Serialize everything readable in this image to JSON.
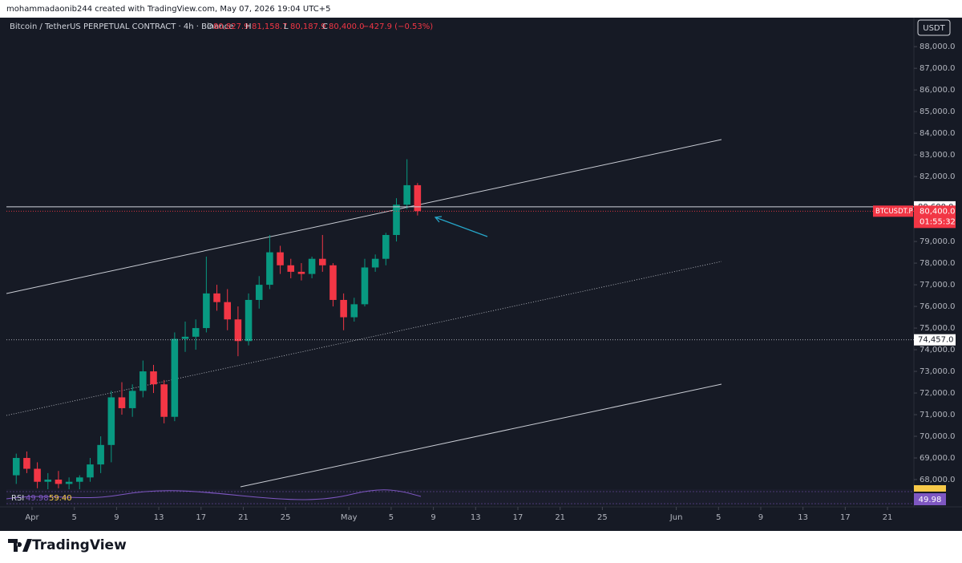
{
  "header": {
    "attribution": "mohammadaonib244 created with TradingView.com, May 07, 2026 19:04 UTC+5"
  },
  "legend": {
    "symbol": "Bitcoin / TetherUS PERPETUAL CONTRACT · 4h · Binance",
    "open_label": "O",
    "open": "80,827.9",
    "high_label": "H",
    "high": "81,158.7",
    "low_label": "L",
    "low": "80,187.9",
    "close_label": "C",
    "close": "80,400.0",
    "change": "−427.9 (−0.53%)"
  },
  "currency_button": "USDT",
  "chart_data": {
    "type": "candlestick",
    "x": [
      -2,
      -1,
      0,
      1,
      2,
      3,
      4,
      5,
      6,
      7,
      8,
      9,
      10,
      11,
      12,
      13,
      14,
      15,
      16,
      17,
      18,
      19,
      20,
      21,
      22,
      23,
      24,
      25,
      26,
      27,
      28,
      29,
      30,
      31,
      32,
      33,
      34,
      35,
      36
    ],
    "open": [
      68200,
      69000,
      68500,
      67900,
      68000,
      67800,
      67900,
      68100,
      68700,
      69600,
      71800,
      71300,
      72100,
      73000,
      72400,
      70900,
      74500,
      74600,
      75000,
      76600,
      76200,
      75400,
      74400,
      76300,
      77000,
      78500,
      77900,
      77600,
      77500,
      78200,
      77900,
      76300,
      75500,
      76100,
      77800,
      78200,
      79300,
      80700,
      81600
    ],
    "high": [
      69200,
      69300,
      68800,
      68300,
      68400,
      68100,
      68200,
      69000,
      70000,
      72100,
      72500,
      72400,
      73500,
      73300,
      72600,
      74800,
      75300,
      75400,
      78300,
      77000,
      76800,
      76000,
      76600,
      77400,
      79300,
      78800,
      78200,
      78000,
      78300,
      79300,
      78000,
      76600,
      76400,
      78200,
      78400,
      79400,
      81000,
      82800,
      81700
    ],
    "low": [
      67800,
      68300,
      67600,
      67400,
      67600,
      67300,
      67500,
      67900,
      68300,
      68800,
      71000,
      70900,
      71800,
      72000,
      70600,
      70700,
      73900,
      74000,
      74800,
      75800,
      74900,
      73700,
      74200,
      75900,
      76800,
      77500,
      77300,
      77200,
      77300,
      77600,
      76000,
      74900,
      75300,
      76000,
      77600,
      77900,
      79000,
      80500,
      80200
    ],
    "close": [
      69000,
      68500,
      67900,
      68000,
      67800,
      67900,
      68100,
      68700,
      69600,
      71800,
      71300,
      72100,
      73000,
      72400,
      70900,
      74500,
      74600,
      75000,
      76600,
      76200,
      75400,
      74400,
      76300,
      77000,
      78500,
      77900,
      77600,
      77500,
      78200,
      77900,
      76300,
      75500,
      76100,
      77800,
      78200,
      79300,
      80700,
      81600,
      80400
    ],
    "up_color": "#089981",
    "down_color": "#f23645",
    "xlim": [
      -2.43,
      83.5
    ],
    "xticks": [
      {
        "value": 0,
        "label": "Apr"
      },
      {
        "value": 4,
        "label": "5"
      },
      {
        "value": 8,
        "label": "9"
      },
      {
        "value": 12,
        "label": "13"
      },
      {
        "value": 16,
        "label": "17"
      },
      {
        "value": 20,
        "label": "21"
      },
      {
        "value": 24,
        "label": "25"
      },
      {
        "value": 30,
        "label": "May"
      },
      {
        "value": 34,
        "label": "5"
      },
      {
        "value": 38,
        "label": "9"
      },
      {
        "value": 42,
        "label": "13"
      },
      {
        "value": 46,
        "label": "17"
      },
      {
        "value": 50,
        "label": "21"
      },
      {
        "value": 54,
        "label": "25"
      },
      {
        "value": 61,
        "label": "Jun"
      },
      {
        "value": 65,
        "label": "5"
      },
      {
        "value": 69,
        "label": "9"
      },
      {
        "value": 73,
        "label": "13"
      },
      {
        "value": 77,
        "label": "17"
      },
      {
        "value": 81,
        "label": "21"
      }
    ],
    "ylim": [
      67630,
      89340
    ],
    "yticks": [
      {
        "value": 68000,
        "label": "68,000.0"
      },
      {
        "value": 69000,
        "label": "69,000.0"
      },
      {
        "value": 70000,
        "label": "70,000.0"
      },
      {
        "value": 71000,
        "label": "71,000.0"
      },
      {
        "value": 72000,
        "label": "72,000.0"
      },
      {
        "value": 73000,
        "label": "73,000.0"
      },
      {
        "value": 74000,
        "label": "74,000.0"
      },
      {
        "value": 75000,
        "label": "75,000.0"
      },
      {
        "value": 76000,
        "label": "76,000.0"
      },
      {
        "value": 77000,
        "label": "77,000.0"
      },
      {
        "value": 78000,
        "label": "78,000.0"
      },
      {
        "value": 79000,
        "label": "79,000.0"
      },
      {
        "value": 82000,
        "label": "82,000.0"
      },
      {
        "value": 83000,
        "label": "83,000.0"
      },
      {
        "value": 84000,
        "label": "84,000.0"
      },
      {
        "value": 85000,
        "label": "85,000.0"
      },
      {
        "value": 86000,
        "label": "86,000.0"
      },
      {
        "value": 87000,
        "label": "87,000.0"
      },
      {
        "value": 88000,
        "label": "88,000.0"
      }
    ],
    "levels": [
      {
        "value": 80600,
        "label": "80,600.0"
      },
      {
        "value": 74457,
        "label": "74,457.0"
      }
    ],
    "last_price": {
      "value": 80400,
      "label": "80,400.0"
    },
    "symbol_tag": "BTCUSDT.P",
    "countdown": "01:55:32"
  },
  "rsi": {
    "name": "RSI",
    "value_1": "49.98",
    "value_2": "59.40",
    "badge": "49.98"
  },
  "footer": {
    "brand": "TradingView"
  }
}
